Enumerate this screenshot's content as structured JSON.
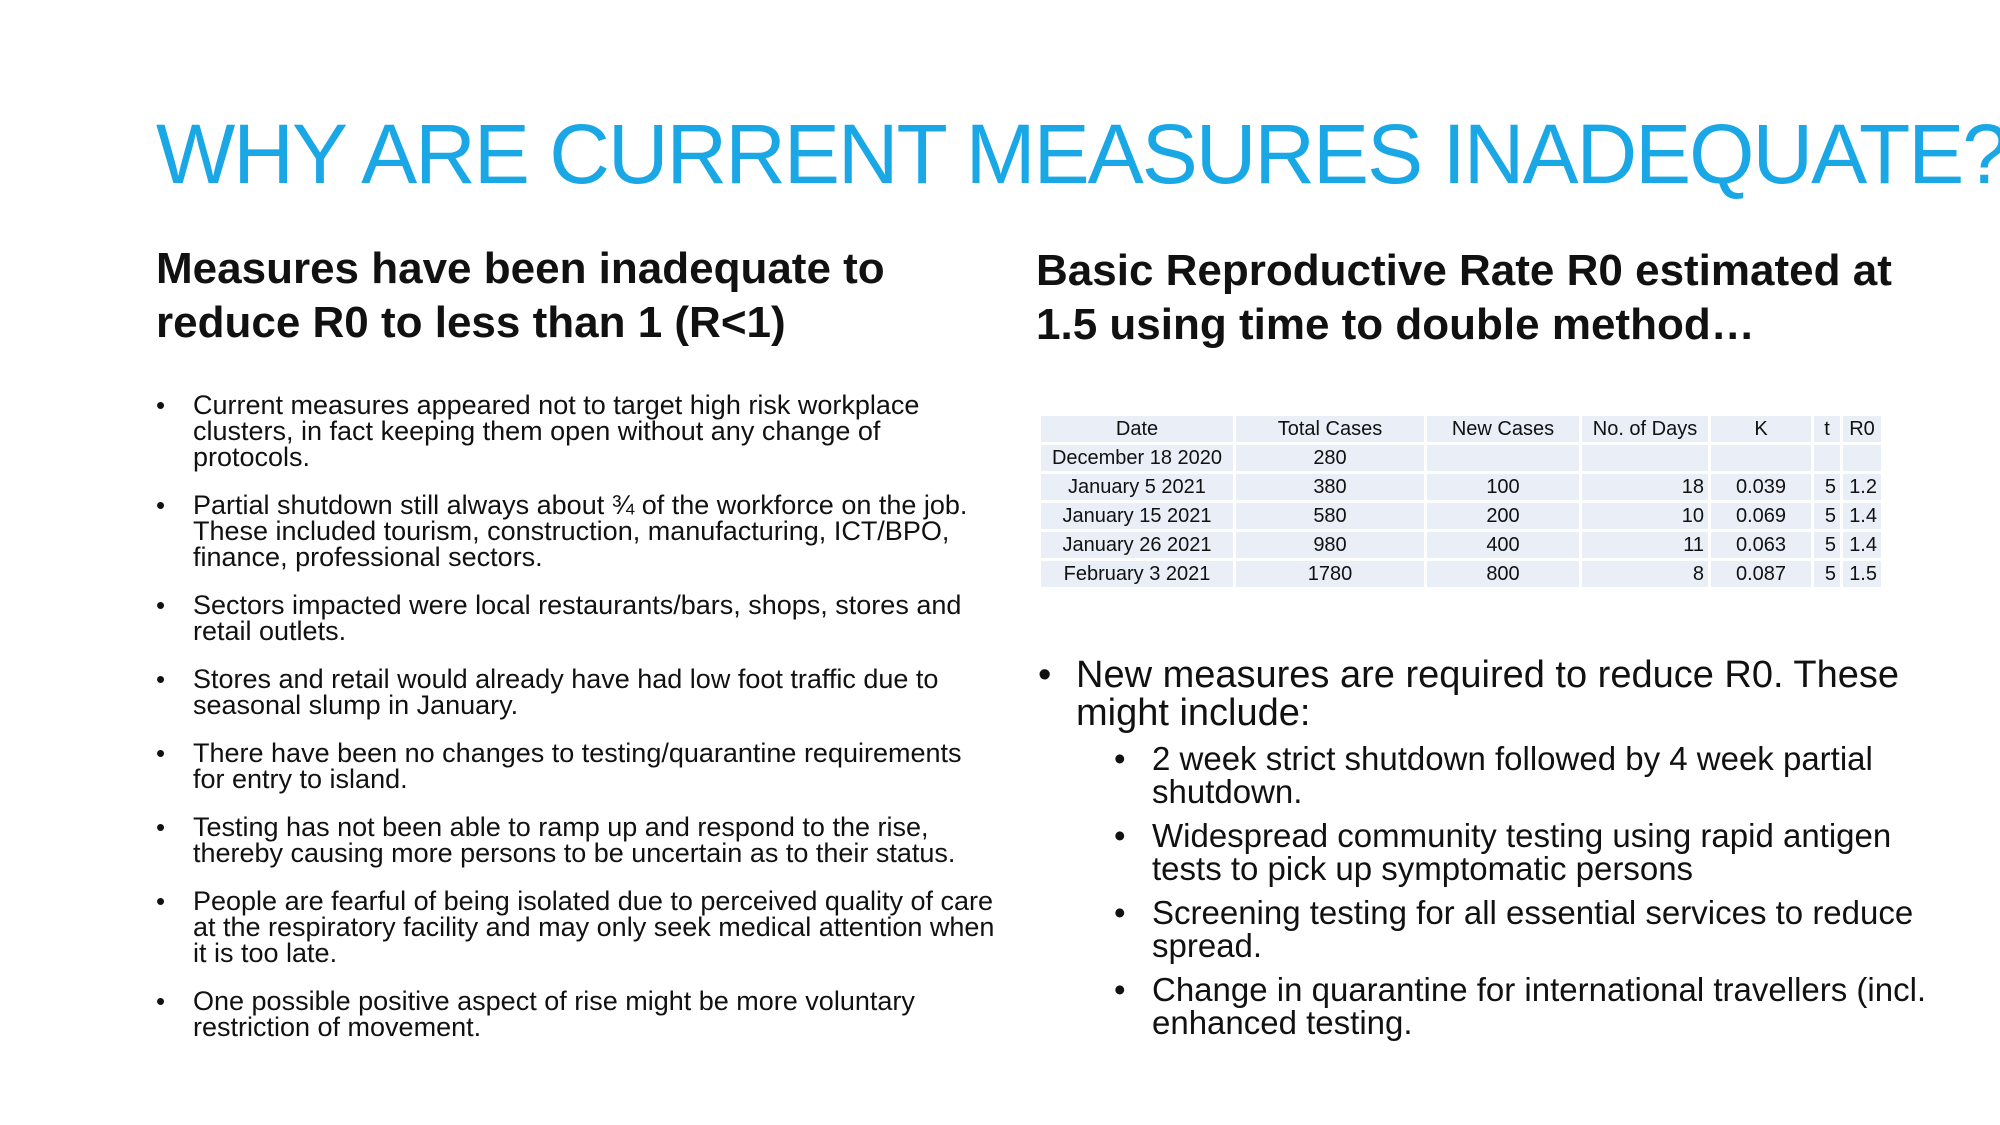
{
  "title": "WHY ARE CURRENT MEASURES INADEQUATE?",
  "left": {
    "subheading": "Measures have been inadequate to reduce R0 to less than 1 (R<1)",
    "bullets": [
      "Current measures appeared not to target high risk workplace clusters, in fact keeping them open without any change of protocols.",
      "Partial shutdown still always about ¾ of the workforce on the job. These included tourism, construction, manufacturing, ICT/BPO, finance, professional sectors.",
      "Sectors impacted were local restaurants/bars, shops, stores and retail outlets.",
      "Stores and retail would already have had low foot traffic due to seasonal slump in January.",
      "There have been no changes to testing/quarantine requirements for entry to island.",
      "Testing has not been able to ramp up and respond to the rise, thereby causing more persons to be uncertain as to their status.",
      "People are fearful of being isolated due to perceived quality of care at the respiratory facility and may only seek medical attention when it is too late.",
      "One possible positive aspect of rise might be more voluntary restriction of movement."
    ]
  },
  "right": {
    "subheading": "Basic Reproductive Rate R0 estimated at 1.5 using time to double method…",
    "table": {
      "headers": [
        "Date",
        "Total Cases",
        "New Cases",
        "No. of Days",
        "K",
        "t",
        "R0"
      ],
      "rows": [
        [
          "December 18 2020",
          "280",
          "",
          "",
          "",
          "",
          ""
        ],
        [
          "January 5 2021",
          "380",
          "100",
          "18",
          "0.039",
          "5",
          "1.2"
        ],
        [
          "January 15 2021",
          "580",
          "200",
          "10",
          "0.069",
          "5",
          "1.4"
        ],
        [
          "January 26 2021",
          "980",
          "400",
          "11",
          "0.063",
          "5",
          "1.4"
        ],
        [
          "February 3 2021",
          "1780",
          "800",
          "8",
          "0.087",
          "5",
          "1.5"
        ]
      ]
    },
    "main_bullet": "New measures are required to reduce R0. These might include:",
    "sub_bullets": [
      "2 week strict shutdown followed by 4 week partial shutdown.",
      "Widespread community testing using rapid antigen tests to pick up symptomatic persons",
      "Screening testing for all essential services to reduce spread.",
      "Change in quarantine for international travellers (incl. enhanced testing."
    ]
  },
  "colors": {
    "title": "#1aa7e6",
    "table_cell": "#e9eef7"
  }
}
